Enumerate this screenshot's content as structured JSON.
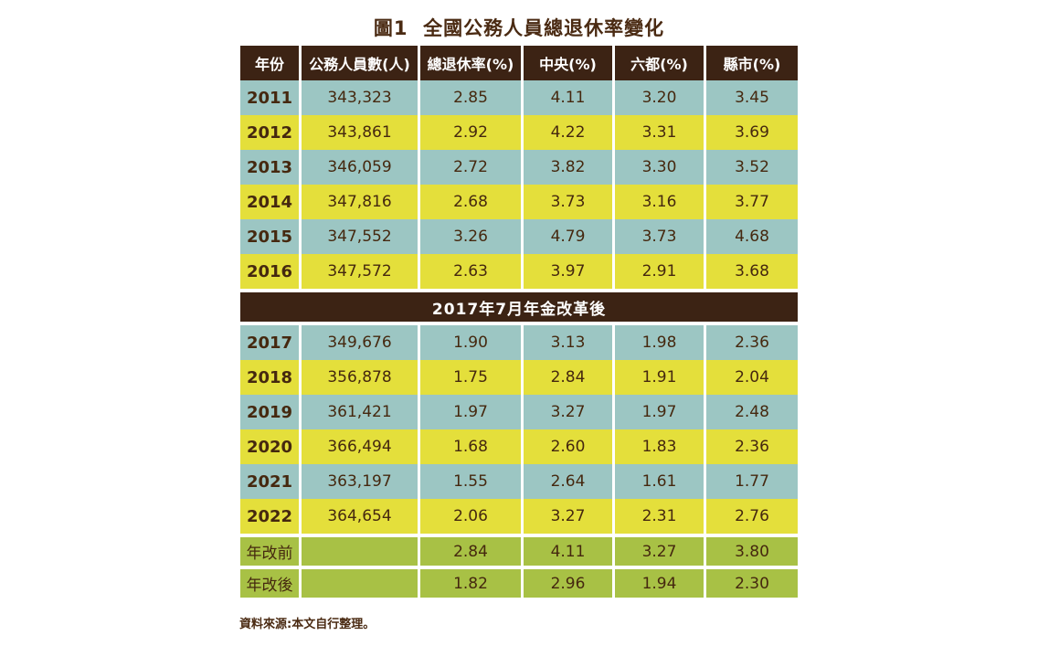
{
  "page": {
    "title": "圖1  全國公務人員總退休率變化",
    "source_note": "資料來源:本文自行整理。"
  },
  "colors": {
    "header_brown": "#3C2314",
    "row_teal": "#9CC6C3",
    "row_yellow": "#E4DF3B",
    "row_green": "#A8C145",
    "text_brown": "#45280F",
    "title_brown": "#4A2A12",
    "background": "#FFFFFF"
  },
  "chart_data": {
    "type": "table",
    "title": "圖1  全國公務人員總退休率變化",
    "columns": [
      "年份",
      "公務人員數(人)",
      "總退休率(%)",
      "中央(%)",
      "六都(%)",
      "縣市(%)"
    ],
    "pre_reform_rows": [
      [
        "2011",
        "343,323",
        "2.85",
        "4.11",
        "3.20",
        "3.45"
      ],
      [
        "2012",
        "343,861",
        "2.92",
        "4.22",
        "3.31",
        "3.69"
      ],
      [
        "2013",
        "346,059",
        "2.72",
        "3.82",
        "3.30",
        "3.52"
      ],
      [
        "2014",
        "347,816",
        "2.68",
        "3.73",
        "3.16",
        "3.77"
      ],
      [
        "2015",
        "347,552",
        "3.26",
        "4.79",
        "3.73",
        "4.68"
      ],
      [
        "2016",
        "347,572",
        "2.63",
        "3.97",
        "2.91",
        "3.68"
      ]
    ],
    "separator_label": "2017年7月年金改革後",
    "post_reform_rows": [
      [
        "2017",
        "349,676",
        "1.90",
        "3.13",
        "1.98",
        "2.36"
      ],
      [
        "2018",
        "356,878",
        "1.75",
        "2.84",
        "1.91",
        "2.04"
      ],
      [
        "2019",
        "361,421",
        "1.97",
        "3.27",
        "1.97",
        "2.48"
      ],
      [
        "2020",
        "366,494",
        "1.68",
        "2.60",
        "1.83",
        "2.36"
      ],
      [
        "2021",
        "363,197",
        "1.55",
        "2.64",
        "1.61",
        "1.77"
      ],
      [
        "2022",
        "364,654",
        "2.06",
        "3.27",
        "2.31",
        "2.76"
      ]
    ],
    "summary_rows": [
      [
        "年改前",
        "",
        "2.84",
        "4.11",
        "3.27",
        "3.80"
      ],
      [
        "年改後",
        "",
        "1.82",
        "2.96",
        "1.94",
        "2.30"
      ]
    ],
    "source_note": "資料來源:本文自行整理。"
  }
}
